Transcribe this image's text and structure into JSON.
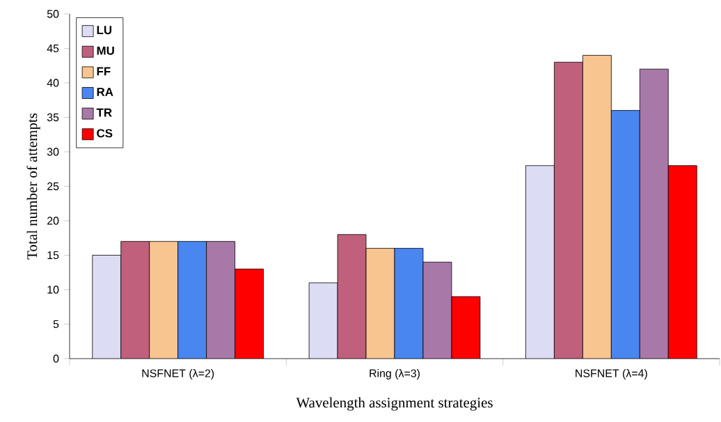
{
  "chart_data": {
    "type": "bar",
    "xlabel": "Wavelength assignment strategies",
    "ylabel": "Total number of attempts",
    "categories": [
      "NSFNET (λ=2)",
      "Ring (λ=3)",
      "NSFNET (λ=4)"
    ],
    "series": [
      {
        "name": "LU",
        "color": "#dcdcf4",
        "values": [
          15,
          11,
          28
        ]
      },
      {
        "name": "MU",
        "color": "#c0607c",
        "values": [
          17,
          18,
          43
        ]
      },
      {
        "name": "FF",
        "color": "#f8c490",
        "values": [
          17,
          16,
          44
        ]
      },
      {
        "name": "RA",
        "color": "#4a86f0",
        "values": [
          17,
          16,
          36
        ]
      },
      {
        "name": "TR",
        "color": "#a878a8",
        "values": [
          17,
          14,
          42
        ]
      },
      {
        "name": "CS",
        "color": "#ff0000",
        "values": [
          13,
          9,
          28
        ]
      }
    ],
    "ylim": [
      0,
      50
    ],
    "yticks": [
      0,
      5,
      10,
      15,
      20,
      25,
      30,
      35,
      40,
      45,
      50
    ],
    "grid": false,
    "legend": "top left"
  }
}
